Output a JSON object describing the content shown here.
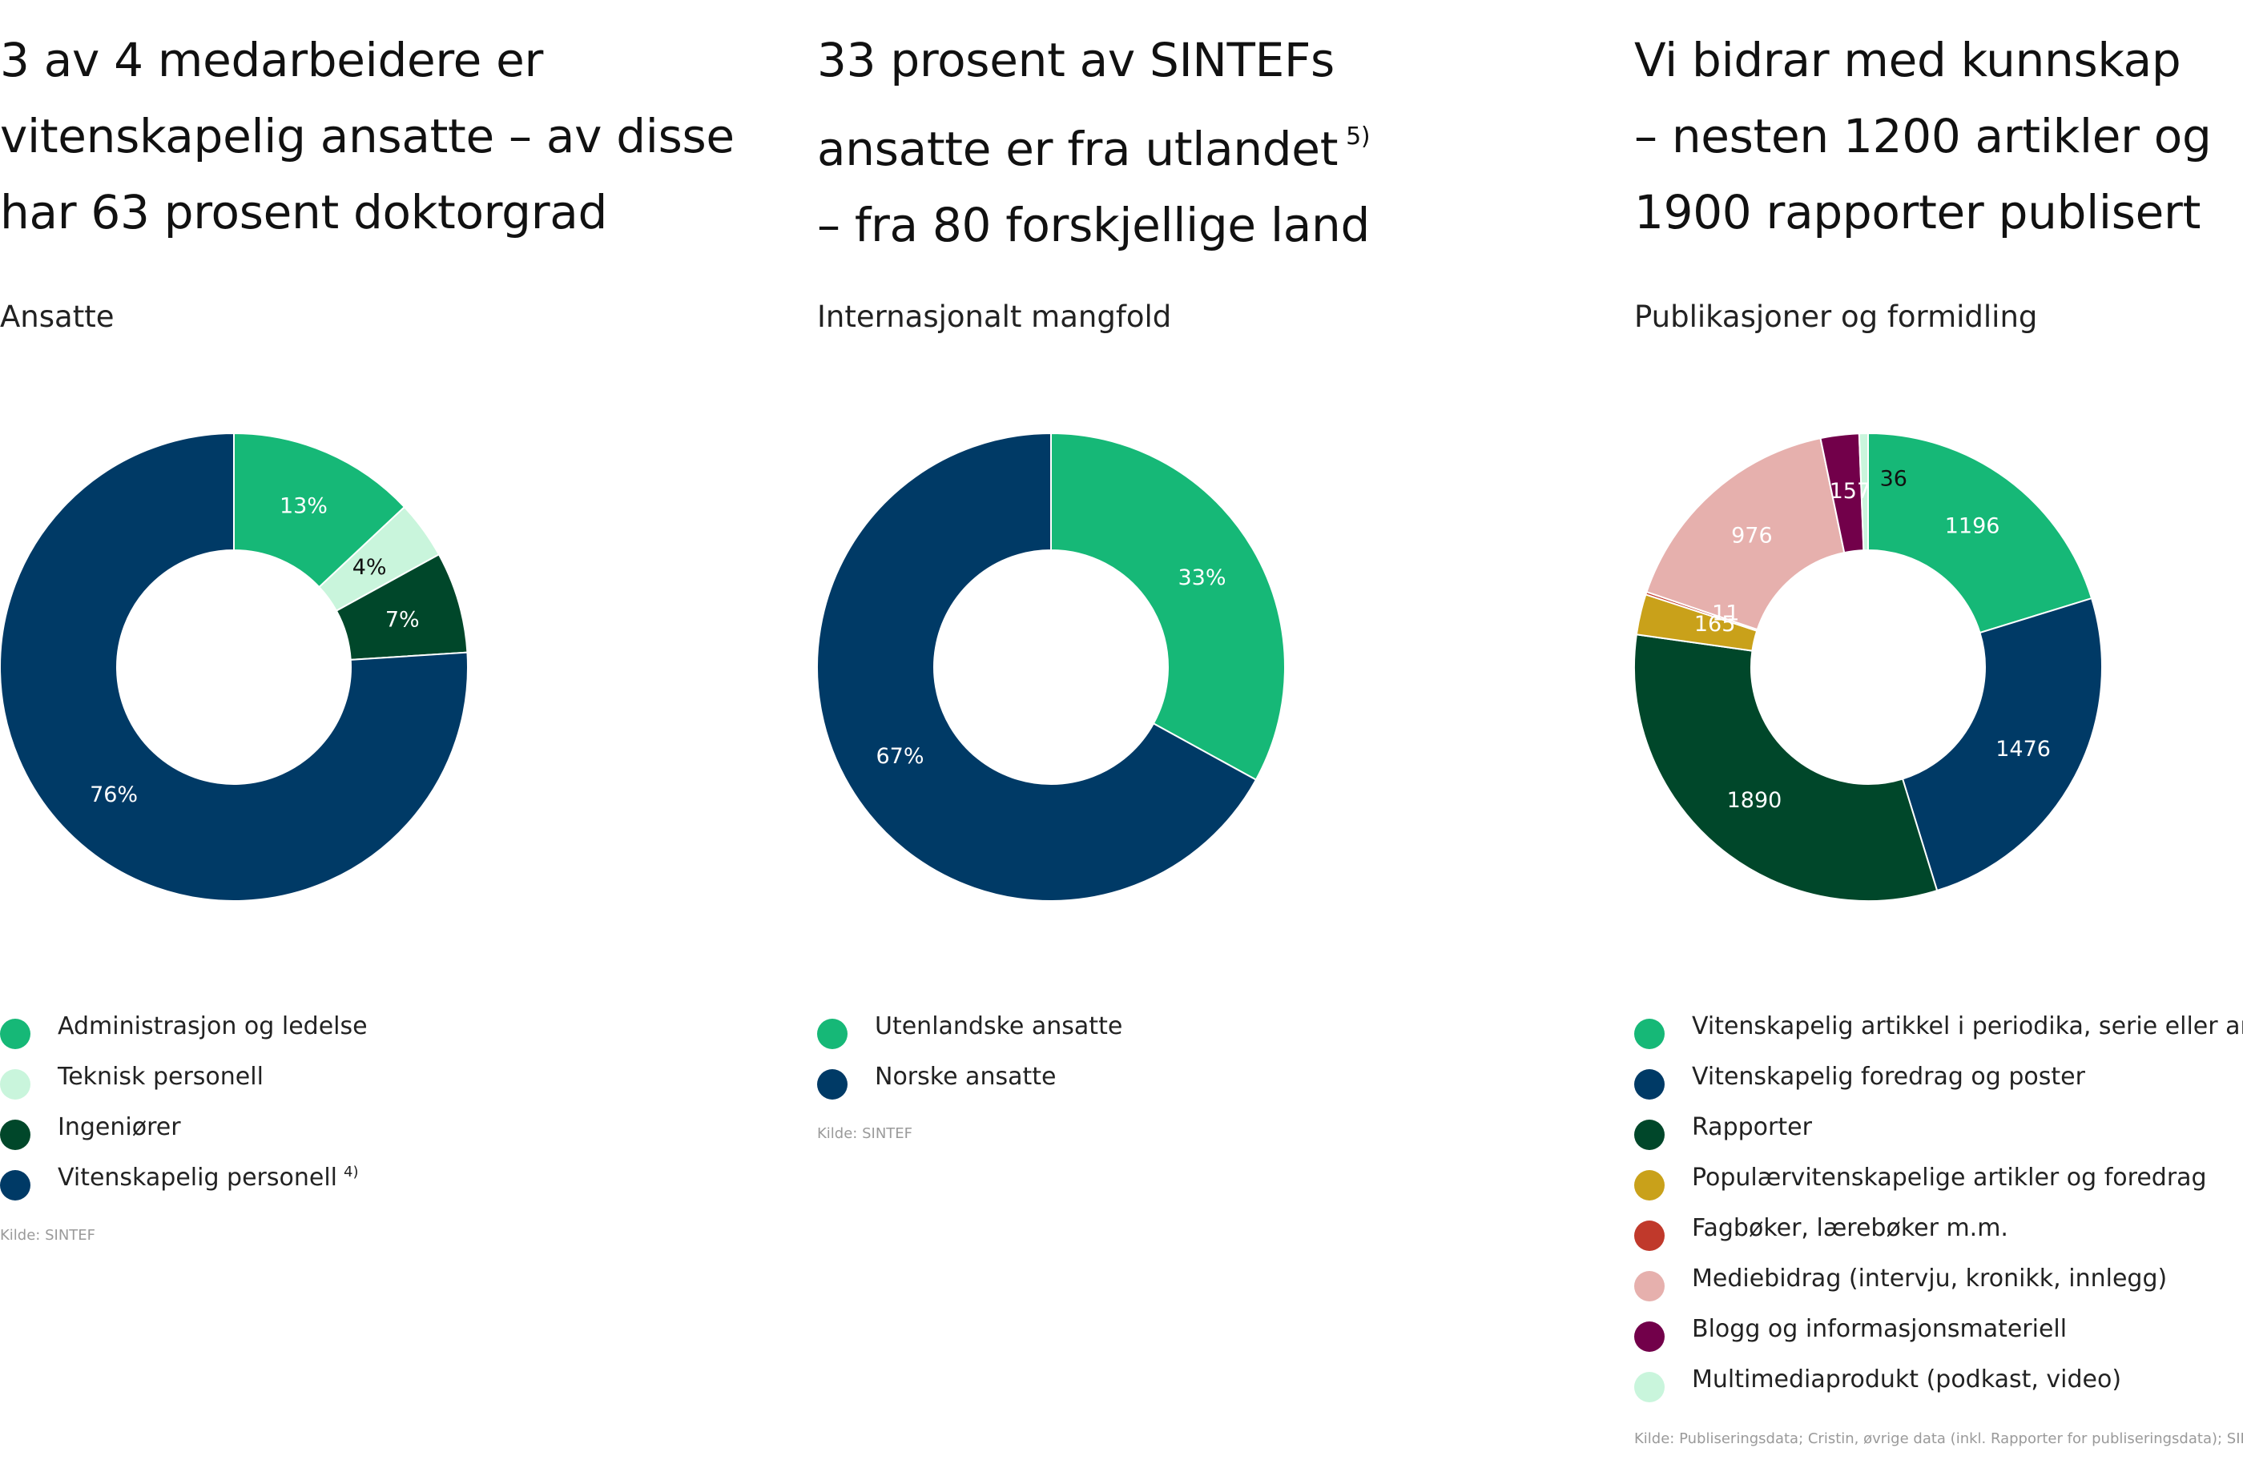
{
  "colors": {
    "green": "#16b877",
    "mint": "#c9f5dc",
    "dark_green": "#00472a",
    "navy": "#003a66",
    "gold": "#c9a11a",
    "red": "#c0392b",
    "pink": "#e6b0ad",
    "plum": "#72004a"
  },
  "panels": [
    {
      "headline": [
        "3 av 4 medarbeidere er",
        "vitenskapelig ansatte – av disse",
        "har 63 prosent doktorgrad"
      ],
      "headline_note": "",
      "subtitle": "Ansatte",
      "source": "Kilde: SINTEF"
    },
    {
      "headline": [
        "33 prosent av SINTEFs",
        "ansatte er fra utlandet",
        "– fra 80 forskjellige land"
      ],
      "headline_note": "5)",
      "subtitle": "Internasjonalt mangfold",
      "source": "Kilde: SINTEF"
    },
    {
      "headline": [
        "Vi bidrar med kunnskap",
        "– nesten 1200 artikler og",
        "1900 rapporter publisert"
      ],
      "headline_note": "",
      "subtitle": "Publikasjoner og formidling",
      "source": "Kilde: Publiseringsdata; Cristin, øvrige data (inkl. Rapporter for publiseringsdata); SINTEF"
    }
  ],
  "chart_data": [
    {
      "type": "pie",
      "title": "Ansatte",
      "donut": true,
      "value_format": "percent",
      "legend_position": "bottom",
      "series": [
        {
          "name": "Administrasjon og ledelse",
          "value": 13,
          "label": "13%",
          "color": "#16b877",
          "label_color": "#ffffff",
          "note": ""
        },
        {
          "name": "Teknisk personell",
          "value": 4,
          "label": "4%",
          "color": "#c9f5dc",
          "label_color": "#111111",
          "note": ""
        },
        {
          "name": "Ingeniører",
          "value": 7,
          "label": "7%",
          "color": "#00472a",
          "label_color": "#ffffff",
          "note": ""
        },
        {
          "name": "Vitenskapelig personell",
          "value": 76,
          "label": "76%",
          "color": "#003a66",
          "label_color": "#ffffff",
          "note": "4)"
        }
      ]
    },
    {
      "type": "pie",
      "title": "Internasjonalt mangfold",
      "donut": true,
      "value_format": "percent",
      "legend_position": "bottom",
      "series": [
        {
          "name": "Utenlandske ansatte",
          "value": 33,
          "label": "33%",
          "color": "#16b877",
          "label_color": "#ffffff",
          "note": ""
        },
        {
          "name": "Norske ansatte",
          "value": 67,
          "label": "67%",
          "color": "#003a66",
          "label_color": "#ffffff",
          "note": ""
        }
      ]
    },
    {
      "type": "pie",
      "title": "Publikasjoner og formidling",
      "donut": true,
      "value_format": "count",
      "legend_position": "bottom",
      "series": [
        {
          "name": "Vitenskapelig artikkel i periodika, serie eller antologi",
          "value": 1196,
          "label": "1196",
          "color": "#16b877",
          "label_color": "#ffffff",
          "note": ""
        },
        {
          "name": "Vitenskapelig foredrag og poster",
          "value": 1476,
          "label": "1476",
          "color": "#003a66",
          "label_color": "#ffffff",
          "note": ""
        },
        {
          "name": "Rapporter",
          "value": 1890,
          "label": "1890",
          "color": "#00472a",
          "label_color": "#ffffff",
          "note": ""
        },
        {
          "name": "Populærvitenskapelige artikler og foredrag",
          "value": 165,
          "label": "165",
          "color": "#c9a11a",
          "label_color": "#ffffff",
          "note": ""
        },
        {
          "name": "Fagbøker, lærebøker m.m.",
          "value": 11,
          "label": "11",
          "color": "#c0392b",
          "label_color": "#ffffff",
          "note": ""
        },
        {
          "name": "Mediebidrag (intervju, kronikk, innlegg)",
          "value": 976,
          "label": "976",
          "color": "#e6b0ad",
          "label_color": "#ffffff",
          "note": ""
        },
        {
          "name": "Blogg og informasjonsmateriell",
          "value": 157,
          "label": "157",
          "color": "#72004a",
          "label_color": "#ffffff",
          "note": ""
        },
        {
          "name": "Multimediaprodukt (podkast, video)",
          "value": 36,
          "label": "36",
          "color": "#c9f5dc",
          "label_color": "#111111",
          "note": ""
        }
      ]
    }
  ]
}
